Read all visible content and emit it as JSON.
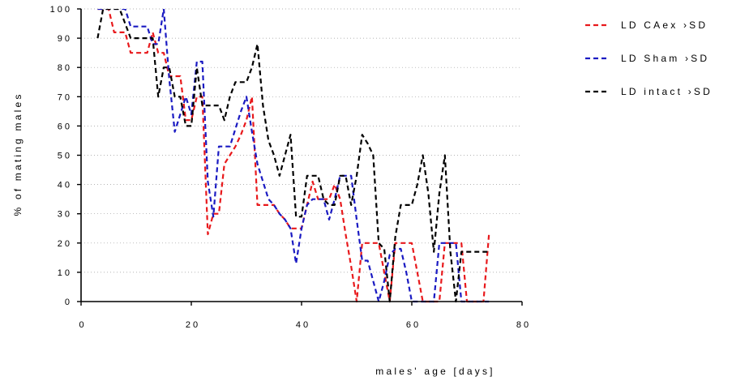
{
  "chart_data": {
    "type": "line",
    "title": "",
    "xlabel": "males' age [days]",
    "ylabel": "% of mating males",
    "xlim": [
      0,
      80
    ],
    "ylim": [
      0,
      100
    ],
    "xticks": [
      0,
      20,
      40,
      60,
      80
    ],
    "yticks": [
      0,
      10,
      20,
      30,
      40,
      50,
      60,
      70,
      80,
      90,
      100
    ],
    "grid": "horizontal dotted",
    "legend_position": "top-right",
    "series": [
      {
        "name": "LD CAex ›SD",
        "color": "#e8191c",
        "x": [
          3,
          4,
          5,
          6,
          7,
          8,
          9,
          10,
          11,
          12,
          13,
          14,
          15,
          16,
          17,
          18,
          19,
          20,
          21,
          22,
          23,
          24,
          25,
          26,
          27,
          28,
          29,
          30,
          31,
          32,
          33,
          34,
          35,
          36,
          37,
          38,
          39,
          40,
          41,
          42,
          43,
          44,
          45,
          46,
          47,
          48,
          49,
          50,
          51,
          52,
          53,
          54,
          55,
          56,
          57,
          58,
          59,
          60,
          61,
          62,
          63,
          64,
          65,
          66,
          67,
          68,
          69,
          70,
          71,
          72,
          73,
          74
        ],
        "y": [
          100,
          100,
          100,
          92,
          92,
          92,
          85,
          85,
          85,
          85,
          92,
          85,
          85,
          77,
          77,
          77,
          62,
          62,
          70,
          70,
          23,
          30,
          30,
          47,
          50,
          53,
          57,
          62,
          70,
          33,
          33,
          33,
          33,
          30,
          28,
          25,
          25,
          25,
          33,
          41,
          35,
          35,
          35,
          40,
          35,
          23,
          12,
          0,
          20,
          20,
          20,
          20,
          10,
          0,
          20,
          20,
          20,
          20,
          10,
          0,
          0,
          0,
          0,
          20,
          20,
          20,
          20,
          0,
          0,
          0,
          0,
          23
        ]
      },
      {
        "name": "LD Sham ›SD",
        "color": "#1a1ac2",
        "x": [
          3,
          4,
          5,
          6,
          7,
          8,
          9,
          10,
          11,
          12,
          13,
          14,
          15,
          16,
          17,
          18,
          19,
          20,
          21,
          22,
          23,
          24,
          25,
          26,
          27,
          28,
          29,
          30,
          31,
          32,
          33,
          34,
          35,
          36,
          37,
          38,
          39,
          40,
          41,
          42,
          43,
          44,
          45,
          46,
          47,
          48,
          49,
          50,
          51,
          52,
          53,
          54,
          55,
          56,
          57,
          58,
          59,
          60,
          61,
          62,
          63,
          64,
          65,
          66,
          67,
          68,
          69,
          70,
          71,
          72,
          73,
          74
        ],
        "y": [
          100,
          100,
          100,
          100,
          100,
          100,
          94,
          94,
          94,
          94,
          88,
          88,
          100,
          76,
          58,
          64,
          70,
          64,
          82,
          82,
          41,
          29,
          53,
          53,
          53,
          59,
          65,
          70,
          58,
          47,
          41,
          35,
          33,
          30,
          28,
          25,
          13,
          25,
          33,
          35,
          35,
          35,
          28,
          35,
          43,
          43,
          43,
          28,
          14,
          14,
          7,
          0,
          7,
          16,
          18,
          18,
          10,
          0,
          0,
          0,
          0,
          0,
          20,
          20,
          20,
          20,
          0,
          0,
          0,
          0,
          0,
          0
        ]
      },
      {
        "name": "LD intact ›SD",
        "color": "#000000",
        "x": [
          3,
          4,
          5,
          6,
          7,
          8,
          9,
          10,
          11,
          12,
          13,
          14,
          15,
          16,
          17,
          18,
          19,
          20,
          21,
          22,
          23,
          24,
          25,
          26,
          27,
          28,
          29,
          30,
          31,
          32,
          33,
          34,
          35,
          36,
          37,
          38,
          39,
          40,
          41,
          42,
          43,
          44,
          45,
          46,
          47,
          48,
          49,
          50,
          51,
          52,
          53,
          54,
          55,
          56,
          57,
          58,
          59,
          60,
          61,
          62,
          63,
          64,
          65,
          66,
          67,
          68,
          69,
          70,
          71,
          72,
          73,
          74
        ],
        "y": [
          90,
          100,
          100,
          100,
          100,
          95,
          90,
          90,
          90,
          90,
          90,
          70,
          80,
          80,
          70,
          70,
          60,
          60,
          80,
          67,
          67,
          67,
          67,
          62,
          70,
          75,
          75,
          75,
          80,
          88,
          67,
          55,
          50,
          43,
          50,
          57,
          29,
          29,
          43,
          43,
          43,
          35,
          33,
          33,
          43,
          43,
          33,
          43,
          57,
          54,
          50,
          20,
          18,
          0,
          22,
          33,
          33,
          33,
          40,
          50,
          37,
          17,
          37,
          50,
          17,
          0,
          17,
          17,
          17,
          17,
          17,
          17
        ]
      }
    ]
  }
}
